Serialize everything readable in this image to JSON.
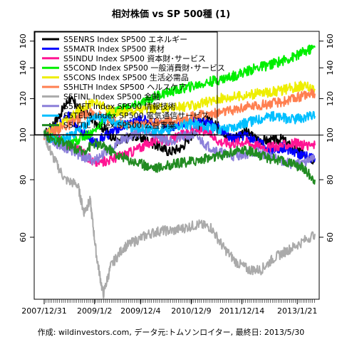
{
  "chart_data": {
    "type": "line",
    "title": "相対株価 vs SP 500種 (1)",
    "footer": "作成: wildinvestors.com, データ元:トムソンロイター, 最終日: 2013/5/30",
    "y_scale": "log",
    "ylim": [
      44,
      168
    ],
    "y_ticks": [
      60,
      80,
      100,
      120,
      140,
      160
    ],
    "x_range": [
      "2007-12-31",
      "2013-05-30"
    ],
    "x_tick_labels": [
      "2007/12/31",
      "2009/1/2",
      "2009/12/4",
      "2010/12/9",
      "2011/12/14",
      "2013/1/21"
    ],
    "x_ticks": [
      "2007-12-31",
      "2009-01-02",
      "2009-12-04",
      "2010-12-09",
      "2011-12-14",
      "2013-01-21"
    ],
    "horizontal_reference_line": 100,
    "legend_position": "top-left",
    "series": [
      {
        "name": "S5ENRS Index SP500 エネルギー",
        "color": "#000000",
        "dates": [
          "2007-12-31",
          "2008-04-01",
          "2008-07-01",
          "2008-10-01",
          "2009-01-01",
          "2009-04-01",
          "2009-07-01",
          "2009-10-01",
          "2010-01-01",
          "2010-04-01",
          "2010-07-01",
          "2010-10-01",
          "2011-01-01",
          "2011-04-01",
          "2011-07-01",
          "2011-10-01",
          "2012-01-01",
          "2012-04-01",
          "2012-07-01",
          "2012-10-01",
          "2013-01-01",
          "2013-03-01",
          "2013-05-30"
        ],
        "values": [
          100,
          108,
          120,
          113,
          108,
          102,
          96,
          100,
          98,
          95,
          92,
          94,
          102,
          108,
          104,
          98,
          102,
          98,
          97,
          98,
          93,
          92,
          88
        ]
      },
      {
        "name": "S5MATR Index SP500 素材",
        "color": "#0000ff",
        "dates": [
          "2007-12-31",
          "2008-04-01",
          "2008-07-01",
          "2008-10-01",
          "2009-01-01",
          "2009-04-01",
          "2009-07-01",
          "2009-10-01",
          "2010-01-01",
          "2010-04-01",
          "2010-07-01",
          "2010-10-01",
          "2011-01-01",
          "2011-04-01",
          "2011-07-01",
          "2011-10-01",
          "2012-01-01",
          "2012-04-01",
          "2012-07-01",
          "2012-10-01",
          "2013-01-01",
          "2013-03-01",
          "2013-05-30"
        ],
        "values": [
          100,
          104,
          110,
          102,
          96,
          100,
          104,
          107,
          108,
          106,
          104,
          106,
          108,
          107,
          103,
          98,
          100,
          97,
          93,
          94,
          92,
          90,
          89
        ]
      },
      {
        "name": "S5INDU Index SP500 資本財･サービス",
        "color": "#ff1493",
        "dates": [
          "2007-12-31",
          "2008-04-01",
          "2008-07-01",
          "2008-10-01",
          "2009-01-01",
          "2009-04-01",
          "2009-07-01",
          "2009-10-01",
          "2010-01-01",
          "2010-04-01",
          "2010-07-01",
          "2010-10-01",
          "2011-01-01",
          "2011-04-01",
          "2011-07-01",
          "2011-10-01",
          "2012-01-01",
          "2012-04-01",
          "2012-07-01",
          "2012-10-01",
          "2013-01-01",
          "2013-03-01",
          "2013-05-30"
        ],
        "values": [
          100,
          98,
          95,
          92,
          87,
          88,
          90,
          92,
          95,
          98,
          97,
          100,
          103,
          102,
          97,
          96,
          97,
          95,
          94,
          95,
          96,
          95,
          95
        ]
      },
      {
        "name": "S5COND Index SP500 一般消費財･サービス",
        "color": "#00ee00",
        "dates": [
          "2007-12-31",
          "2008-04-01",
          "2008-07-01",
          "2008-10-01",
          "2009-01-01",
          "2009-04-01",
          "2009-07-01",
          "2009-10-01",
          "2010-01-01",
          "2010-04-01",
          "2010-07-01",
          "2010-10-01",
          "2011-01-01",
          "2011-04-01",
          "2011-07-01",
          "2011-10-01",
          "2012-01-01",
          "2012-04-01",
          "2012-07-01",
          "2012-10-01",
          "2013-01-01",
          "2013-03-01",
          "2013-05-30"
        ],
        "values": [
          100,
          98,
          95,
          99,
          102,
          110,
          114,
          115,
          118,
          122,
          124,
          126,
          128,
          130,
          132,
          134,
          137,
          140,
          142,
          145,
          148,
          151,
          155
        ]
      },
      {
        "name": "S5CONS Index SP500 生活必需品",
        "color": "#eeee00",
        "dates": [
          "2007-12-31",
          "2008-04-01",
          "2008-07-01",
          "2008-10-01",
          "2009-01-01",
          "2009-04-01",
          "2009-07-01",
          "2009-10-01",
          "2010-01-01",
          "2010-04-01",
          "2010-07-01",
          "2010-10-01",
          "2011-01-01",
          "2011-04-01",
          "2011-07-01",
          "2011-10-01",
          "2012-01-01",
          "2012-04-01",
          "2012-07-01",
          "2012-10-01",
          "2013-01-01",
          "2013-03-01",
          "2013-05-30"
        ],
        "values": [
          100,
          104,
          108,
          115,
          118,
          114,
          112,
          113,
          114,
          114,
          115,
          115,
          116,
          118,
          120,
          121,
          122,
          123,
          124,
          125,
          127,
          128,
          126
        ]
      },
      {
        "name": "S5HLTH Index SP500 ヘルスケア",
        "color": "#ff7f50",
        "dates": [
          "2007-12-31",
          "2008-04-01",
          "2008-07-01",
          "2008-10-01",
          "2009-01-01",
          "2009-04-01",
          "2009-07-01",
          "2009-10-01",
          "2010-01-01",
          "2010-04-01",
          "2010-07-01",
          "2010-10-01",
          "2011-01-01",
          "2011-04-01",
          "2011-07-01",
          "2011-10-01",
          "2012-01-01",
          "2012-04-01",
          "2012-07-01",
          "2012-10-01",
          "2013-01-01",
          "2013-03-01",
          "2013-05-30"
        ],
        "values": [
          100,
          103,
          105,
          110,
          112,
          108,
          106,
          105,
          106,
          107,
          107,
          108,
          110,
          111,
          112,
          113,
          115,
          116,
          117,
          118,
          120,
          122,
          123
        ]
      },
      {
        "name": "S5FINL Index SP500 金融",
        "color": "#aaaaaa",
        "dates": [
          "2007-12-31",
          "2008-03-01",
          "2008-06-01",
          "2008-09-01",
          "2008-10-15",
          "2008-12-01",
          "2009-01-15",
          "2009-03-06",
          "2009-05-01",
          "2009-08-01",
          "2009-11-01",
          "2010-02-01",
          "2010-05-01",
          "2010-08-01",
          "2010-11-01",
          "2011-02-01",
          "2011-05-01",
          "2011-08-01",
          "2011-11-01",
          "2012-02-01",
          "2012-05-01",
          "2012-08-01",
          "2012-11-01",
          "2013-02-01",
          "2013-05-30"
        ],
        "values": [
          100,
          90,
          80,
          78,
          68,
          72,
          55,
          45,
          52,
          57,
          59,
          61,
          62,
          62,
          63,
          64,
          63,
          57,
          53,
          51,
          51,
          54,
          56,
          58,
          61
        ]
      },
      {
        "name": "S5INFT Index SP500 情報技術",
        "color": "#8b7fd9",
        "dates": [
          "2007-12-31",
          "2008-04-01",
          "2008-07-01",
          "2008-10-01",
          "2009-01-01",
          "2009-04-01",
          "2009-07-01",
          "2009-10-01",
          "2010-01-01",
          "2010-04-01",
          "2010-07-01",
          "2010-10-01",
          "2011-01-01",
          "2011-04-01",
          "2011-07-01",
          "2011-10-01",
          "2012-01-01",
          "2012-04-01",
          "2012-07-01",
          "2012-10-01",
          "2013-01-01",
          "2013-03-01",
          "2013-05-30"
        ],
        "values": [
          100,
          96,
          93,
          90,
          88,
          92,
          97,
          100,
          102,
          100,
          97,
          99,
          100,
          95,
          92,
          90,
          91,
          92,
          90,
          88,
          86,
          87,
          89
        ]
      },
      {
        "name": "S5TELS Index SP500 電気通信サービス",
        "color": "#00bfff",
        "dates": [
          "2007-12-31",
          "2008-04-01",
          "2008-07-01",
          "2008-10-01",
          "2009-01-01",
          "2009-04-01",
          "2009-07-01",
          "2009-10-01",
          "2010-01-01",
          "2010-04-01",
          "2010-07-01",
          "2010-10-01",
          "2011-01-01",
          "2011-04-01",
          "2011-07-01",
          "2011-10-01",
          "2012-01-01",
          "2012-04-01",
          "2012-07-01",
          "2012-10-01",
          "2013-01-01",
          "2013-03-01",
          "2013-05-30"
        ],
        "values": [
          100,
          97,
          99,
          104,
          110,
          108,
          106,
          104,
          103,
          102,
          103,
          105,
          106,
          104,
          103,
          104,
          106,
          108,
          110,
          109,
          108,
          109,
          110
        ]
      },
      {
        "name": "S5UTIL Index SP500 公益事業",
        "color": "#228b22",
        "dates": [
          "2007-12-31",
          "2008-04-01",
          "2008-07-01",
          "2008-10-01",
          "2009-01-01",
          "2009-04-01",
          "2009-07-01",
          "2009-10-01",
          "2010-01-01",
          "2010-04-01",
          "2010-07-01",
          "2010-10-01",
          "2011-01-01",
          "2011-04-01",
          "2011-07-01",
          "2011-10-01",
          "2012-01-01",
          "2012-04-01",
          "2012-07-01",
          "2012-10-01",
          "2013-01-01",
          "2013-03-01",
          "2013-05-30"
        ],
        "values": [
          100,
          97,
          95,
          92,
          96,
          94,
          90,
          88,
          86,
          85,
          86,
          87,
          88,
          89,
          90,
          92,
          93,
          91,
          89,
          88,
          86,
          85,
          80
        ]
      }
    ]
  }
}
